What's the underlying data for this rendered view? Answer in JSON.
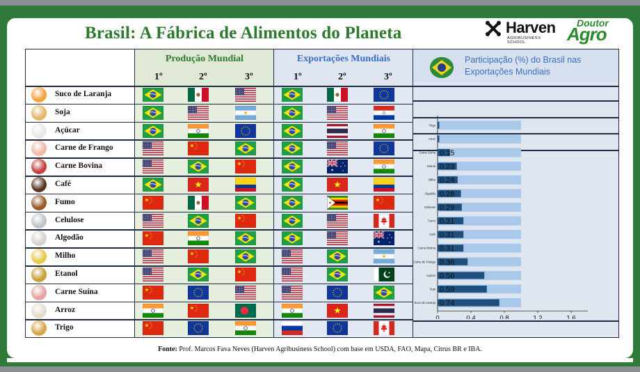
{
  "title": "Brasil: A Fábrica de Alimentos do Planeta",
  "logos": {
    "harven_name": "Harven",
    "harven_sub_1": "AGRIBUSINESS",
    "harven_sub_2": "SCHOOL",
    "doutor_1": "Doutor",
    "doutor_2": "Agro"
  },
  "headers": {
    "producao": "Produção Mundial",
    "exportacoes": "Exportações Mundiais",
    "participacao": "Participação (%) do Brasil nas Exportações Mundiais",
    "ranks": [
      "1º",
      "2º",
      "3º"
    ]
  },
  "colors": {
    "title_green": "#2d7a2e",
    "export_blue": "#3a6fc4",
    "bar_light": "#a9c8ea",
    "bar_dark": "#1f4f7d",
    "frame_green": "#2f7a3a"
  },
  "products": [
    {
      "name": "Suco de Laranja",
      "icon": "orange-juice-icon",
      "icon_color": "#f3a33b",
      "producao": [
        "brazil",
        "mexico",
        "usa"
      ],
      "exportacoes": [
        "brazil",
        "mexico",
        "eu"
      ]
    },
    {
      "name": "Soja",
      "icon": "soybean-icon",
      "icon_color": "#e2b867",
      "producao": [
        "brazil",
        "usa",
        "argentina"
      ],
      "exportacoes": [
        "brazil",
        "usa",
        "paraguay"
      ]
    },
    {
      "name": "Açúcar",
      "icon": "sugar-icon",
      "icon_color": "#e8e8e8",
      "producao": [
        "brazil",
        "india",
        "eu"
      ],
      "exportacoes": [
        "brazil",
        "thailand",
        "india"
      ]
    },
    {
      "name": "Carne de Frango",
      "icon": "chicken-icon",
      "icon_color": "#f0b9a8",
      "producao": [
        "usa",
        "china",
        "brazil"
      ],
      "exportacoes": [
        "brazil",
        "usa",
        "eu"
      ]
    },
    {
      "name": "Carne Bovina",
      "icon": "beef-icon",
      "icon_color": "#c44040",
      "producao": [
        "usa",
        "brazil",
        "china"
      ],
      "exportacoes": [
        "brazil",
        "australia",
        "india"
      ]
    },
    {
      "name": "Café",
      "icon": "coffee-icon",
      "icon_color": "#5a3524",
      "producao": [
        "brazil",
        "vietnam",
        "colombia"
      ],
      "exportacoes": [
        "brazil",
        "vietnam",
        "colombia"
      ]
    },
    {
      "name": "Fumo",
      "icon": "tobacco-icon",
      "icon_color": "#9c5a2a",
      "producao": [
        "china",
        "mexico",
        "brazil"
      ],
      "exportacoes": [
        "brazil",
        "zimbabwe",
        "china"
      ]
    },
    {
      "name": "Celulose",
      "icon": "pulp-icon",
      "icon_color": "#bfc4c8",
      "producao": [
        "usa",
        "brazil",
        "china"
      ],
      "exportacoes": [
        "brazil",
        "usa",
        "canada"
      ]
    },
    {
      "name": "Algodão",
      "icon": "cotton-icon",
      "icon_color": "#d8d2cc",
      "producao": [
        "china",
        "india",
        "brazil"
      ],
      "exportacoes": [
        "brazil",
        "usa",
        "australia"
      ]
    },
    {
      "name": "Milho",
      "icon": "corn-icon",
      "icon_color": "#e9c94b",
      "producao": [
        "usa",
        "china",
        "brazil"
      ],
      "exportacoes": [
        "usa",
        "brazil",
        "argentina"
      ]
    },
    {
      "name": "Etanol",
      "icon": "ethanol-icon",
      "icon_color": "#c9a03a",
      "producao": [
        "usa",
        "brazil",
        "china"
      ],
      "exportacoes": [
        "usa",
        "brazil",
        "pakistan"
      ]
    },
    {
      "name": "Carne Suína",
      "icon": "pork-icon",
      "icon_color": "#e6a2a2",
      "producao": [
        "china",
        "eu",
        "usa"
      ],
      "exportacoes": [
        "usa",
        "eu",
        "brazil"
      ]
    },
    {
      "name": "Arroz",
      "icon": "rice-icon",
      "icon_color": "#e5dccb",
      "producao": [
        "india",
        "china",
        "bangladesh"
      ],
      "exportacoes": [
        "india",
        "vietnam",
        "thailand"
      ]
    },
    {
      "name": "Trigo",
      "icon": "wheat-icon",
      "icon_color": "#d7a64d",
      "producao": [
        "china",
        "eu",
        "india"
      ],
      "exportacoes": [
        "russia",
        "eu",
        "canada"
      ]
    }
  ],
  "chart_data": {
    "type": "bar",
    "orientation": "horizontal",
    "categories": [
      "Trigo",
      "Arroz",
      "Carne Suína",
      "Etanol",
      "Milho",
      "Algodão",
      "Celulose",
      "Fumo",
      "Café",
      "Carne Bovina",
      "Carne de Frango",
      "Açúcar",
      "Soja",
      "Suco de Laranja"
    ],
    "series": [
      {
        "values": [
          1,
          1,
          1,
          1,
          1,
          1,
          1,
          1,
          1,
          1,
          1,
          1,
          1,
          1
        ],
        "color": "#a9c8ea"
      },
      {
        "values": [
          0.02,
          0.02,
          0.15,
          0.23,
          0.24,
          0.28,
          0.29,
          0.31,
          0.31,
          0.31,
          0.36,
          0.56,
          0.59,
          0.74
        ],
        "color": "#1f4f7d"
      }
    ],
    "data_labels": [
      "",
      "",
      "0.15",
      "0.23",
      "0.24",
      "0.28",
      "0.29",
      "0.31",
      "0.31",
      "0.31",
      "0.36",
      "0.56",
      "0.59",
      "0.74"
    ],
    "xlim": [
      0,
      1.8
    ],
    "xticks": [
      "0",
      "0,4",
      "0,8",
      "1,2",
      "1,6"
    ],
    "xtick_values": [
      0,
      0.4,
      0.8,
      1.2,
      1.6
    ],
    "grid": false,
    "legend": "none"
  },
  "source": {
    "label": "Fonte:",
    "text": "Prof. Marcos Fava Neves (Harven Agribusiness School) com base em USDA, FAO, Mapa, Citrus BR e IBA."
  }
}
